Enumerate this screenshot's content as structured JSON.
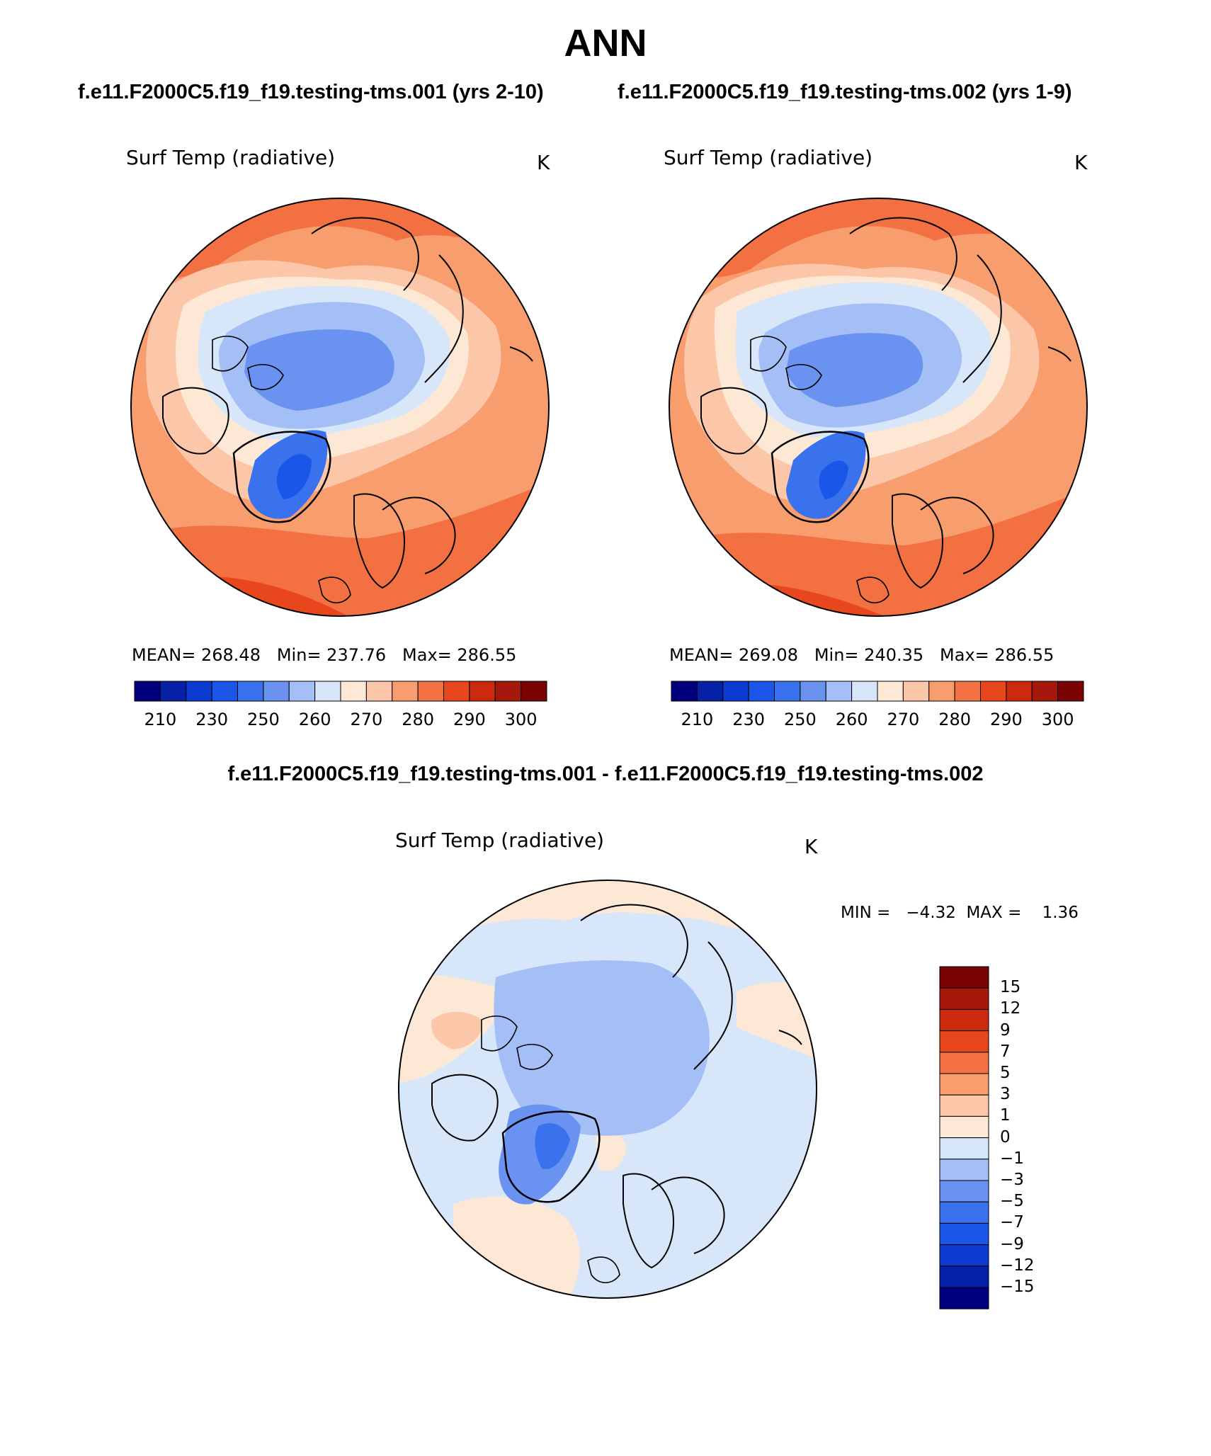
{
  "figure": {
    "title": "ANN",
    "case1_title": "f.e11.F2000C5.f19_f19.testing-tms.001 (yrs 2-10)",
    "case2_title": "f.e11.F2000C5.f19_f19.testing-tms.002 (yrs 1-9)",
    "diff_title": "f.e11.F2000C5.f19_f19.testing-tms.001 - f.e11.F2000C5.f19_f19.testing-tms.002"
  },
  "panels": [
    {
      "variable": "Surf Temp (radiative)",
      "units": "K",
      "stats": "MEAN= 268.48   Min= 237.76   Max= 286.55"
    },
    {
      "variable": "Surf Temp (radiative)",
      "units": "K",
      "stats": "MEAN= 269.08   Min= 240.35   Max= 286.55"
    },
    {
      "variable": "Surf Temp (radiative)",
      "units": "K",
      "stats": "MIN =   −4.32  MAX =    1.36"
    }
  ],
  "abs_colorbar": {
    "labels": [
      "210",
      "230",
      "250",
      "260",
      "270",
      "280",
      "290",
      "300"
    ],
    "colors": [
      "#00007f",
      "#0521a8",
      "#0b3bd1",
      "#1a57e8",
      "#3a72ee",
      "#6a92f0",
      "#a4bff5",
      "#d8e6fa",
      "#fde8d6",
      "#fcc7a8",
      "#f79d6e",
      "#f27042",
      "#e8461c",
      "#cc2a0c",
      "#a5180a",
      "#7a0404"
    ]
  },
  "diff_colorbar": {
    "labels": [
      "15",
      "12",
      "9",
      "7",
      "5",
      "3",
      "1",
      "0",
      "−1",
      "−3",
      "−5",
      "−7",
      "−9",
      "−12",
      "−15"
    ],
    "colors": [
      "#7a0404",
      "#a5180a",
      "#cc2a0c",
      "#e8461c",
      "#f27042",
      "#f79d6e",
      "#fcc7a8",
      "#fde8d6",
      "#d8e6fa",
      "#a4bff5",
      "#6a92f0",
      "#3a72ee",
      "#1a57e8",
      "#0b3bd1",
      "#0521a8",
      "#00007f"
    ]
  }
}
